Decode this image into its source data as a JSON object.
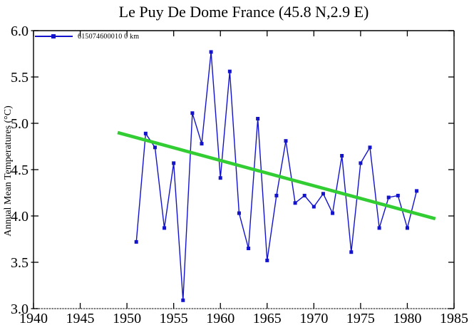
{
  "title": "Le Puy De Dome France (45.8 N,2.9 E)",
  "legend": {
    "label": "615074600010 0 km"
  },
  "colors": {
    "series": "#1313cb",
    "trend": "#32cd32",
    "axis": "#000000",
    "background": "#ffffff"
  },
  "chart_data": {
    "type": "line",
    "title": "Le Puy De Dome France (45.8 N,2.9 E)",
    "xlabel": "",
    "ylabel": "Annual Mean Temperatures (°C)",
    "xlim": [
      1940,
      1985
    ],
    "ylim": [
      3.0,
      6.0
    ],
    "xticks": [
      1940,
      1945,
      1950,
      1955,
      1960,
      1965,
      1970,
      1975,
      1980,
      1985
    ],
    "yticks": [
      6.0,
      5.5,
      5.0,
      4.5,
      4.0,
      3.5,
      3.0
    ],
    "ytick_labels": [
      "6.0",
      "5.5",
      "5.0",
      "4.5",
      "4.0",
      "3.5",
      "3.0"
    ],
    "grid": false,
    "marker": "square",
    "legend_position": "top-left",
    "series": [
      {
        "name": "615074600010 0 km",
        "x": [
          1951,
          1952,
          1953,
          1954,
          1955,
          1956,
          1957,
          1958,
          1959,
          1960,
          1961,
          1962,
          1963,
          1964,
          1965,
          1966,
          1967,
          1968,
          1969,
          1970,
          1971,
          1972,
          1973,
          1974,
          1975,
          1976,
          1977,
          1978,
          1979,
          1980,
          1981
        ],
        "y": [
          3.72,
          4.89,
          4.74,
          3.87,
          4.57,
          3.09,
          5.11,
          4.78,
          5.77,
          4.41,
          5.56,
          4.03,
          3.65,
          5.05,
          3.52,
          4.22,
          4.81,
          4.14,
          4.22,
          4.1,
          4.24,
          4.03,
          4.65,
          3.61,
          4.57,
          4.74,
          3.87,
          4.2,
          4.22,
          3.87,
          4.27
        ]
      }
    ],
    "trend": {
      "name": "linear-trend",
      "x": [
        1949,
        1983
      ],
      "y": [
        4.9,
        3.97
      ]
    }
  }
}
